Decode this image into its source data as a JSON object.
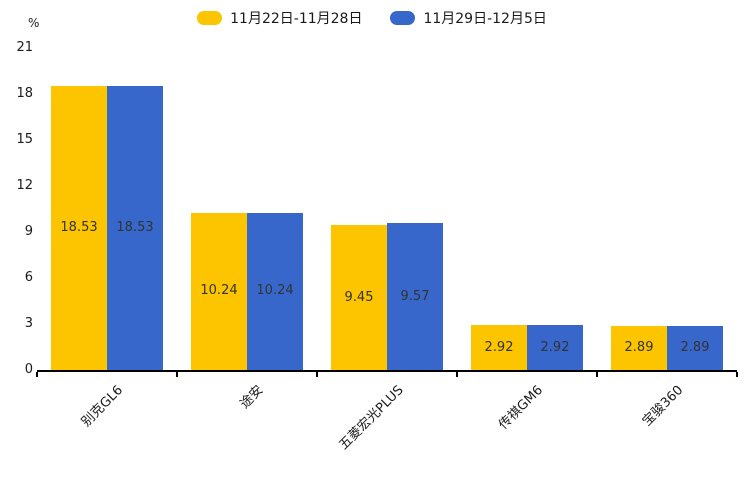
{
  "chart_data": {
    "type": "bar",
    "title": "",
    "unit_label": "%",
    "categories": [
      "别克GL6",
      "途安",
      "五菱宏光PLUS",
      "传祺GM6",
      "宝骏360"
    ],
    "series": [
      {
        "name": "11月22日-11月28日",
        "color": "#FCC500",
        "values": [
          18.53,
          10.24,
          9.45,
          2.92,
          2.89
        ]
      },
      {
        "name": "11月29日-12月5日",
        "color": "#3767CB",
        "values": [
          18.53,
          10.24,
          9.57,
          2.92,
          2.89
        ]
      }
    ],
    "value_labels": [
      [
        "18.53",
        "10.24",
        "9.45",
        "2.92",
        "2.89"
      ],
      [
        "18.53",
        "10.24",
        "9.57",
        "2.92",
        "2.89"
      ]
    ],
    "ylim": [
      0,
      21
    ],
    "yticks": [
      "0",
      "3",
      "6",
      "9",
      "12",
      "15",
      "18",
      "21"
    ],
    "grid": false,
    "legend_position": "top-center",
    "value_label_color": "#333333",
    "axis_color": "#000000",
    "background_color": "#ffffff"
  }
}
